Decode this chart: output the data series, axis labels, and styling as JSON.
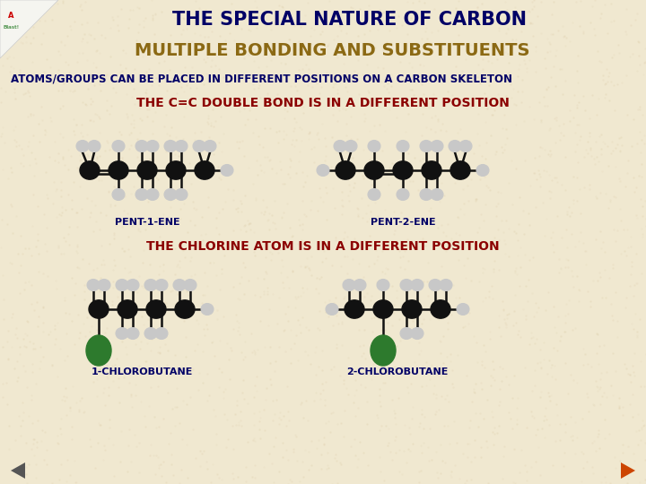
{
  "background_color": "#f0e8d0",
  "title1": "THE SPECIAL NATURE OF CARBON",
  "title1_color": "#000066",
  "title1_fontsize": 15,
  "title2": "MULTIPLE BONDING AND SUBSTITUENTS",
  "title2_color": "#8b6914",
  "title2_fontsize": 14,
  "subtitle": "ATOMS/GROUPS CAN BE PLACED IN DIFFERENT POSITIONS ON A CARBON SKELETON",
  "subtitle_color": "#000066",
  "subtitle_fontsize": 8.5,
  "section1_title": "THE C=C DOUBLE BOND IS IN A DIFFERENT POSITION",
  "section1_color": "#8b0000",
  "section1_fontsize": 10,
  "section2_title": "THE CHLORINE ATOM IS IN A DIFFERENT POSITION",
  "section2_color": "#8b0000",
  "section2_fontsize": 10,
  "label_color": "#000066",
  "label_fontsize": 8,
  "carbon_color": "#111111",
  "hydrogen_color": "#c8c8c8",
  "chlorine_color": "#2d7a2d",
  "bond_color": "#111111"
}
